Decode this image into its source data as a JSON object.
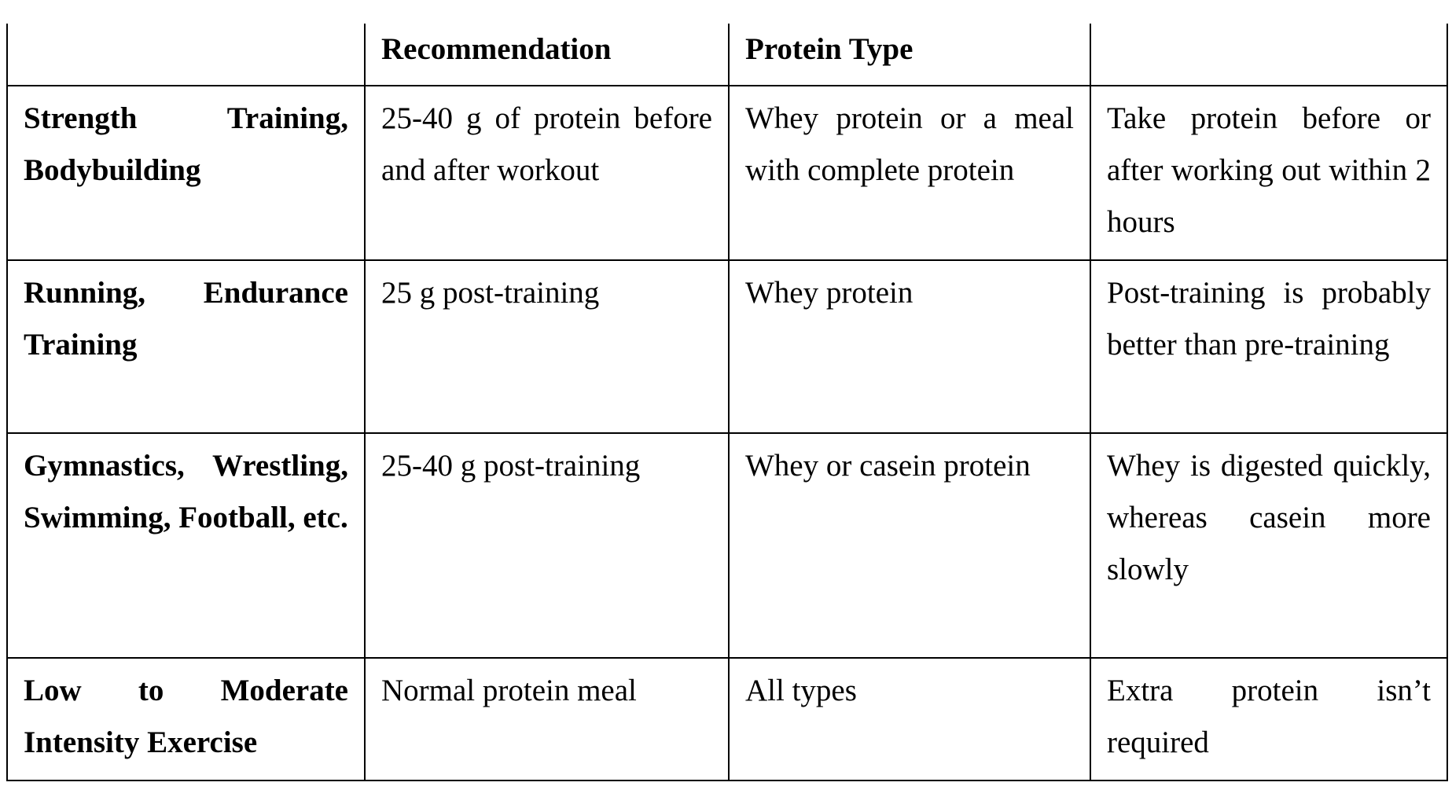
{
  "table": {
    "headers": [
      "",
      "Recommendation",
      "Protein Type",
      ""
    ],
    "rows": [
      {
        "activity": "Strength Training, Bodybuilding",
        "recommendation": "25-40 g of protein before and after workout",
        "protein_type": "Whey protein or a meal with complete protein",
        "notes": "Take protein before or after working out within 2 hours"
      },
      {
        "activity": "Running, Endurance Training",
        "recommendation": "25 g post-training",
        "protein_type": "Whey protein",
        "notes": "Post-training is probably better than pre-training"
      },
      {
        "activity": "Gymnastics, Wrestling, Swimming, Football, etc.",
        "recommendation": "25-40 g post-training",
        "protein_type": "Whey or casein protein",
        "notes": "Whey is digested quickly, whereas casein more slowly"
      },
      {
        "activity": "Low to Moderate Intensity Exercise",
        "recommendation": "Normal protein meal",
        "protein_type": "All types",
        "notes": "Extra protein isn’t required"
      }
    ]
  }
}
